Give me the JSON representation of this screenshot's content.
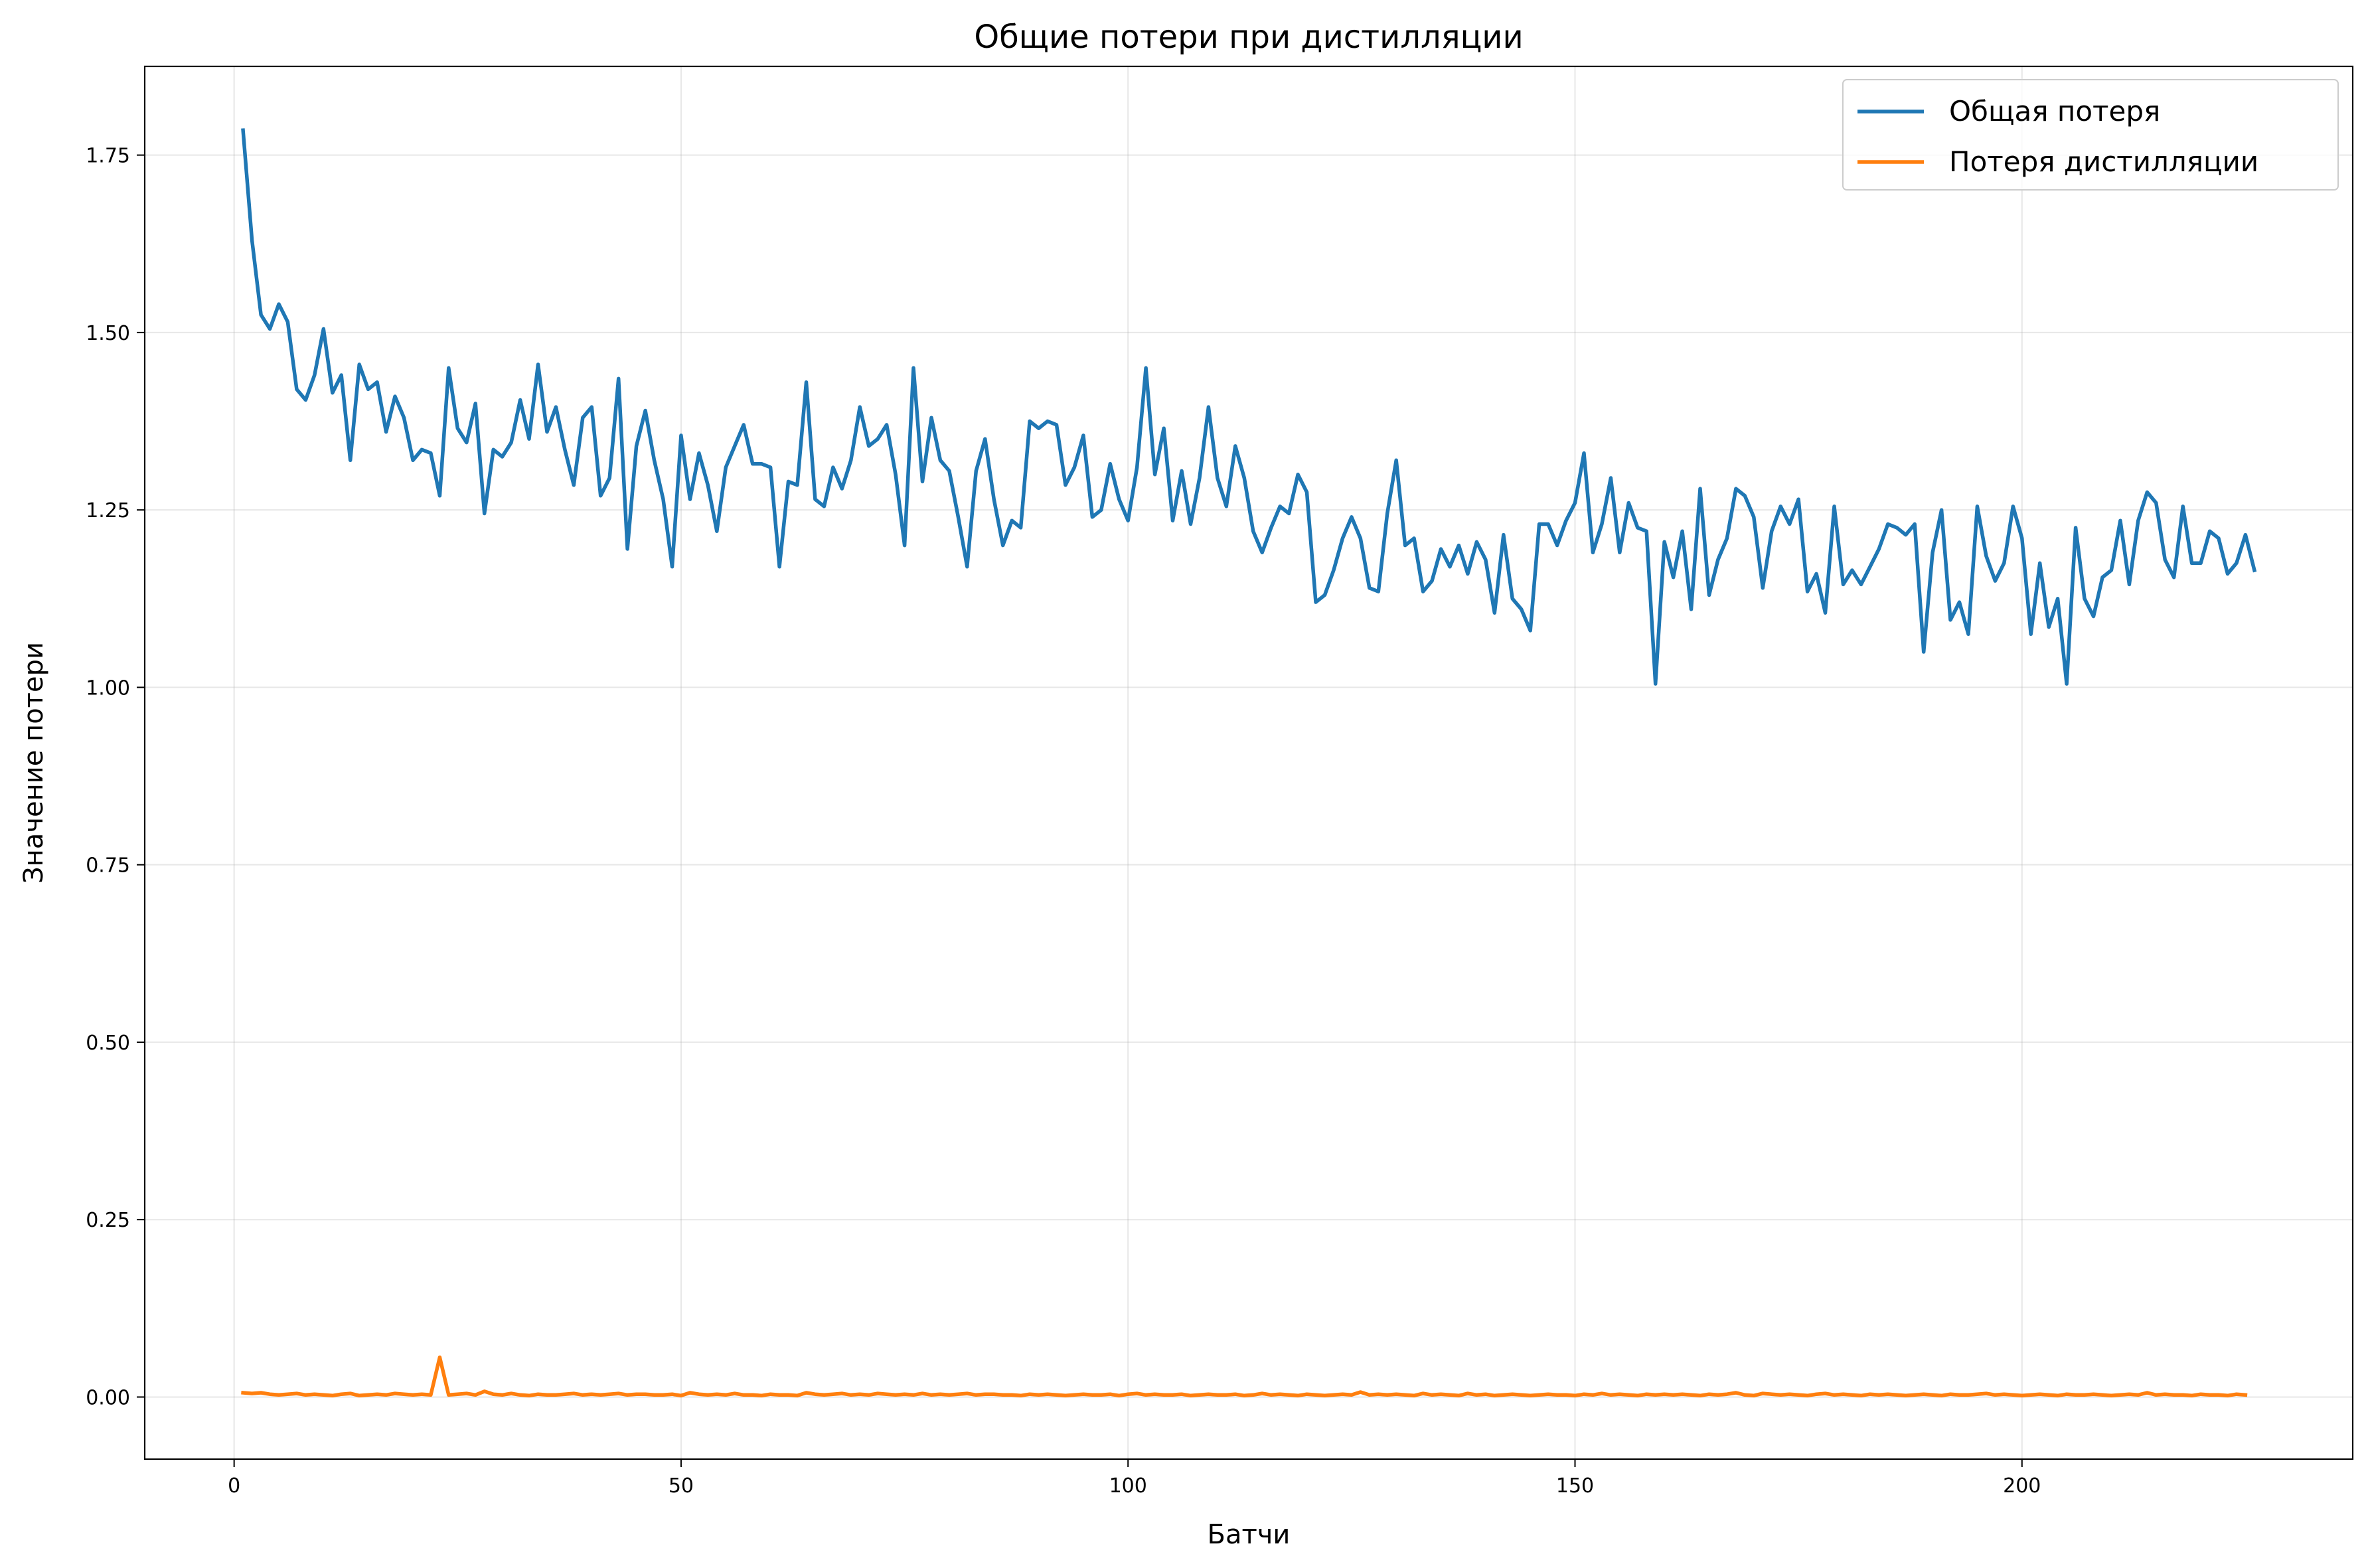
{
  "chart_data": {
    "type": "line",
    "title": "Общие потери при дистилляции",
    "xlabel": "Батчи",
    "ylabel": "Значение потери",
    "xlim": [
      -10,
      237
    ],
    "ylim": [
      -0.0875,
      1.875
    ],
    "x_ticks": [
      0,
      50,
      100,
      150,
      200
    ],
    "x_tick_labels": [
      "0",
      "50",
      "100",
      "150",
      "200"
    ],
    "y_ticks": [
      0,
      0.25,
      0.5,
      0.75,
      1.0,
      1.25,
      1.5,
      1.75
    ],
    "y_tick_labels": [
      "0.00",
      "0.25",
      "0.50",
      "0.75",
      "1.00",
      "1.25",
      "1.50",
      "1.75"
    ],
    "grid": true,
    "legend": "top-right",
    "series": [
      {
        "name": "Общая потеря",
        "color": "#1f77b4",
        "x_start": 1,
        "values": [
          1.785,
          1.63,
          1.525,
          1.505,
          1.54,
          1.515,
          1.42,
          1.405,
          1.44,
          1.505,
          1.415,
          1.44,
          1.32,
          1.455,
          1.42,
          1.43,
          1.36,
          1.41,
          1.38,
          1.32,
          1.335,
          1.33,
          1.27,
          1.45,
          1.365,
          1.345,
          1.4,
          1.245,
          1.335,
          1.325,
          1.345,
          1.405,
          1.35,
          1.455,
          1.36,
          1.395,
          1.335,
          1.285,
          1.38,
          1.395,
          1.27,
          1.295,
          1.435,
          1.195,
          1.34,
          1.39,
          1.32,
          1.265,
          1.17,
          1.355,
          1.265,
          1.33,
          1.285,
          1.22,
          1.31,
          1.34,
          1.37,
          1.315,
          1.315,
          1.31,
          1.17,
          1.29,
          1.285,
          1.43,
          1.265,
          1.255,
          1.31,
          1.28,
          1.32,
          1.395,
          1.34,
          1.35,
          1.37,
          1.3,
          1.2,
          1.45,
          1.29,
          1.38,
          1.32,
          1.305,
          1.24,
          1.17,
          1.305,
          1.35,
          1.265,
          1.2,
          1.235,
          1.225,
          1.375,
          1.365,
          1.375,
          1.37,
          1.285,
          1.31,
          1.355,
          1.24,
          1.25,
          1.315,
          1.265,
          1.235,
          1.31,
          1.45,
          1.3,
          1.365,
          1.235,
          1.305,
          1.23,
          1.295,
          1.395,
          1.295,
          1.255,
          1.34,
          1.295,
          1.22,
          1.19,
          1.225,
          1.255,
          1.245,
          1.3,
          1.275,
          1.12,
          1.13,
          1.165,
          1.21,
          1.24,
          1.21,
          1.14,
          1.135,
          1.245,
          1.32,
          1.2,
          1.21,
          1.135,
          1.15,
          1.195,
          1.17,
          1.2,
          1.16,
          1.205,
          1.18,
          1.105,
          1.215,
          1.125,
          1.11,
          1.08,
          1.23,
          1.23,
          1.2,
          1.235,
          1.26,
          1.33,
          1.19,
          1.23,
          1.295,
          1.19,
          1.26,
          1.225,
          1.22,
          1.005,
          1.205,
          1.155,
          1.22,
          1.11,
          1.28,
          1.13,
          1.18,
          1.21,
          1.28,
          1.27,
          1.24,
          1.14,
          1.22,
          1.255,
          1.23,
          1.265,
          1.135,
          1.16,
          1.105,
          1.255,
          1.145,
          1.165,
          1.145,
          1.17,
          1.195,
          1.23,
          1.225,
          1.215,
          1.23,
          1.05,
          1.19,
          1.25,
          1.095,
          1.12,
          1.075,
          1.255,
          1.185,
          1.15,
          1.175,
          1.255,
          1.21,
          1.075,
          1.175,
          1.085,
          1.125,
          1.005,
          1.225,
          1.125,
          1.1,
          1.155,
          1.165,
          1.235,
          1.145,
          1.235,
          1.275,
          1.26,
          1.18,
          1.155,
          1.255,
          1.175,
          1.175,
          1.22,
          1.21,
          1.16,
          1.175,
          1.215,
          1.165
        ]
      },
      {
        "name": "Потеря дистилляции",
        "color": "#ff7f0e",
        "x_start": 1,
        "values": [
          0.006,
          0.005,
          0.006,
          0.004,
          0.003,
          0.004,
          0.005,
          0.003,
          0.004,
          0.003,
          0.002,
          0.004,
          0.005,
          0.002,
          0.003,
          0.004,
          0.003,
          0.005,
          0.004,
          0.003,
          0.004,
          0.003,
          0.056,
          0.003,
          0.004,
          0.005,
          0.003,
          0.008,
          0.004,
          0.003,
          0.005,
          0.003,
          0.002,
          0.004,
          0.003,
          0.003,
          0.004,
          0.005,
          0.003,
          0.004,
          0.003,
          0.004,
          0.005,
          0.003,
          0.004,
          0.004,
          0.003,
          0.003,
          0.004,
          0.002,
          0.006,
          0.004,
          0.003,
          0.004,
          0.003,
          0.005,
          0.003,
          0.003,
          0.002,
          0.004,
          0.003,
          0.003,
          0.002,
          0.006,
          0.004,
          0.003,
          0.004,
          0.005,
          0.003,
          0.004,
          0.003,
          0.005,
          0.004,
          0.003,
          0.004,
          0.003,
          0.005,
          0.003,
          0.004,
          0.003,
          0.004,
          0.005,
          0.003,
          0.004,
          0.004,
          0.003,
          0.003,
          0.002,
          0.004,
          0.003,
          0.004,
          0.003,
          0.002,
          0.003,
          0.004,
          0.003,
          0.003,
          0.004,
          0.002,
          0.004,
          0.005,
          0.003,
          0.004,
          0.003,
          0.003,
          0.004,
          0.002,
          0.003,
          0.004,
          0.003,
          0.003,
          0.004,
          0.002,
          0.003,
          0.005,
          0.003,
          0.004,
          0.003,
          0.002,
          0.004,
          0.003,
          0.002,
          0.003,
          0.004,
          0.003,
          0.007,
          0.003,
          0.004,
          0.003,
          0.004,
          0.003,
          0.002,
          0.005,
          0.003,
          0.004,
          0.003,
          0.002,
          0.005,
          0.003,
          0.004,
          0.002,
          0.003,
          0.004,
          0.003,
          0.002,
          0.003,
          0.004,
          0.003,
          0.003,
          0.002,
          0.004,
          0.003,
          0.005,
          0.003,
          0.004,
          0.003,
          0.002,
          0.004,
          0.003,
          0.004,
          0.003,
          0.004,
          0.003,
          0.002,
          0.004,
          0.003,
          0.004,
          0.006,
          0.003,
          0.002,
          0.005,
          0.004,
          0.003,
          0.004,
          0.003,
          0.002,
          0.004,
          0.005,
          0.003,
          0.004,
          0.003,
          0.002,
          0.004,
          0.003,
          0.004,
          0.003,
          0.002,
          0.003,
          0.004,
          0.003,
          0.002,
          0.004,
          0.003,
          0.003,
          0.004,
          0.005,
          0.003,
          0.004,
          0.003,
          0.002,
          0.003,
          0.004,
          0.003,
          0.002,
          0.004,
          0.003,
          0.003,
          0.004,
          0.003,
          0.002,
          0.003,
          0.004,
          0.003,
          0.006,
          0.003,
          0.004,
          0.003,
          0.003,
          0.002,
          0.004,
          0.003,
          0.003,
          0.002,
          0.004,
          0.003
        ]
      }
    ]
  }
}
